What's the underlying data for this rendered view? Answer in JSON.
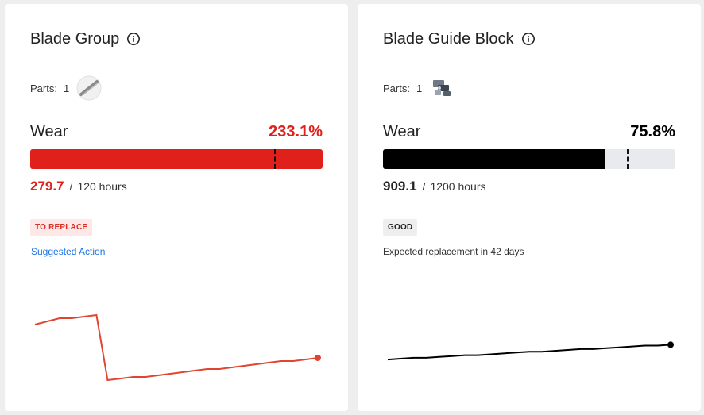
{
  "cards": [
    {
      "title": "Blade Group",
      "parts_label": "Parts:",
      "parts_count": "1",
      "part_icon": "blade-part-icon",
      "wear_label": "Wear",
      "wear_percent": "233.1%",
      "wear_fraction": 2.331,
      "hours_value": "279.7",
      "hours_separator": "/",
      "hours_total": "120 hours",
      "status_badge": "TO REPLACE",
      "action_label": "Suggested Action",
      "color": "#e0201a",
      "sparkline": [
        0.62,
        0.6,
        0.58,
        0.58,
        0.57,
        0.56,
        0.97,
        0.96,
        0.95,
        0.95,
        0.94,
        0.93,
        0.92,
        0.91,
        0.9,
        0.9,
        0.89,
        0.88,
        0.87,
        0.86,
        0.85,
        0.85,
        0.84,
        0.83
      ]
    },
    {
      "title": "Blade Guide Block",
      "parts_label": "Parts:",
      "parts_count": "1",
      "part_icon": "guide-block-part-icon",
      "wear_label": "Wear",
      "wear_percent": "75.8%",
      "wear_fraction": 0.758,
      "hours_value": "909.1",
      "hours_separator": "/",
      "hours_total": "1200 hours",
      "status_badge": "GOOD",
      "action_label": "Expected replacement in 42 days",
      "color": "#000000",
      "sparkline": [
        0.29,
        0.3,
        0.31,
        0.31,
        0.32,
        0.33,
        0.34,
        0.34,
        0.35,
        0.36,
        0.37,
        0.38,
        0.38,
        0.39,
        0.4,
        0.41,
        0.41,
        0.42,
        0.43,
        0.44,
        0.45,
        0.45,
        0.46
      ]
    }
  ],
  "colors": {
    "danger": "#e0201a",
    "spark_danger": "#e0452f",
    "good": "#000000",
    "link": "#1a73e8",
    "track": "#e8eaed"
  },
  "bar_marker_fraction": 0.835
}
